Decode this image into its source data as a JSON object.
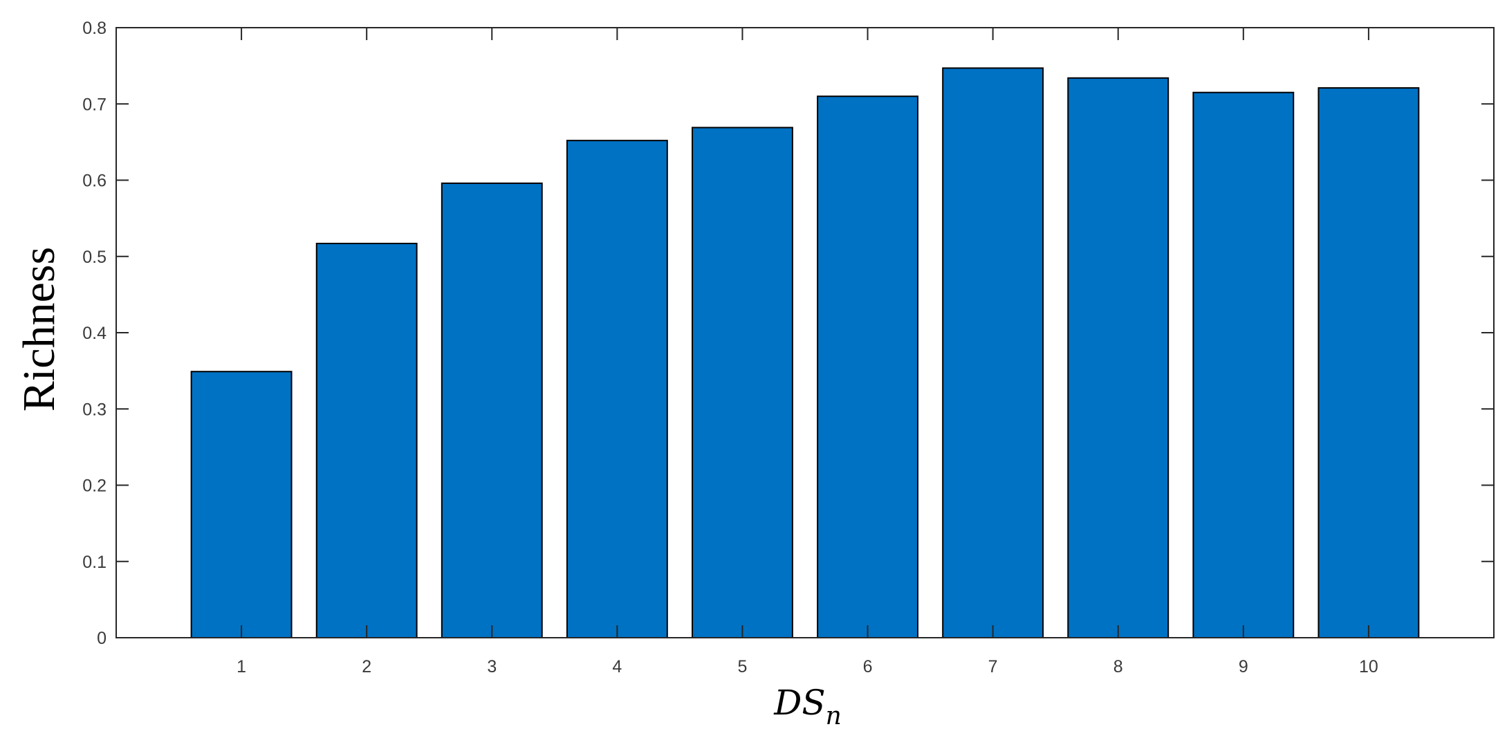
{
  "chart_data": {
    "type": "bar",
    "categories": [
      "1",
      "2",
      "3",
      "4",
      "5",
      "6",
      "7",
      "8",
      "9",
      "10"
    ],
    "values": [
      0.349,
      0.517,
      0.596,
      0.652,
      0.669,
      0.71,
      0.747,
      0.734,
      0.715,
      0.721
    ],
    "ylabel": "Richness",
    "xlabel": "DS",
    "xlabel_subscript": "n",
    "ylim": [
      0,
      0.8
    ],
    "yticks": [
      "0",
      "0.1",
      "0.2",
      "0.3",
      "0.4",
      "0.5",
      "0.6",
      "0.7",
      "0.8"
    ],
    "xlim": [
      0,
      11
    ],
    "grid": false,
    "bar_color": "#0072c4",
    "bar_edge_color": "#000000"
  }
}
